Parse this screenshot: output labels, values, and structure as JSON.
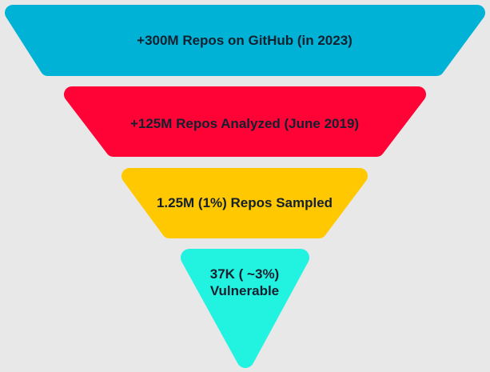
{
  "funnel": {
    "stages": [
      {
        "label_lines": [
          "+300M Repos on GitHub (in 2023)"
        ],
        "color": "#00b2d6"
      },
      {
        "label_lines": [
          "+125M Repos Analyzed (June 2019)"
        ],
        "color": "#ff0336"
      },
      {
        "label_lines": [
          "1.25M (1%) Repos Sampled"
        ],
        "color": "#ffc800"
      },
      {
        "label_lines": [
          "37K ( ~3%)",
          "Vulnerable"
        ],
        "color": "#22f2e0"
      }
    ]
  }
}
